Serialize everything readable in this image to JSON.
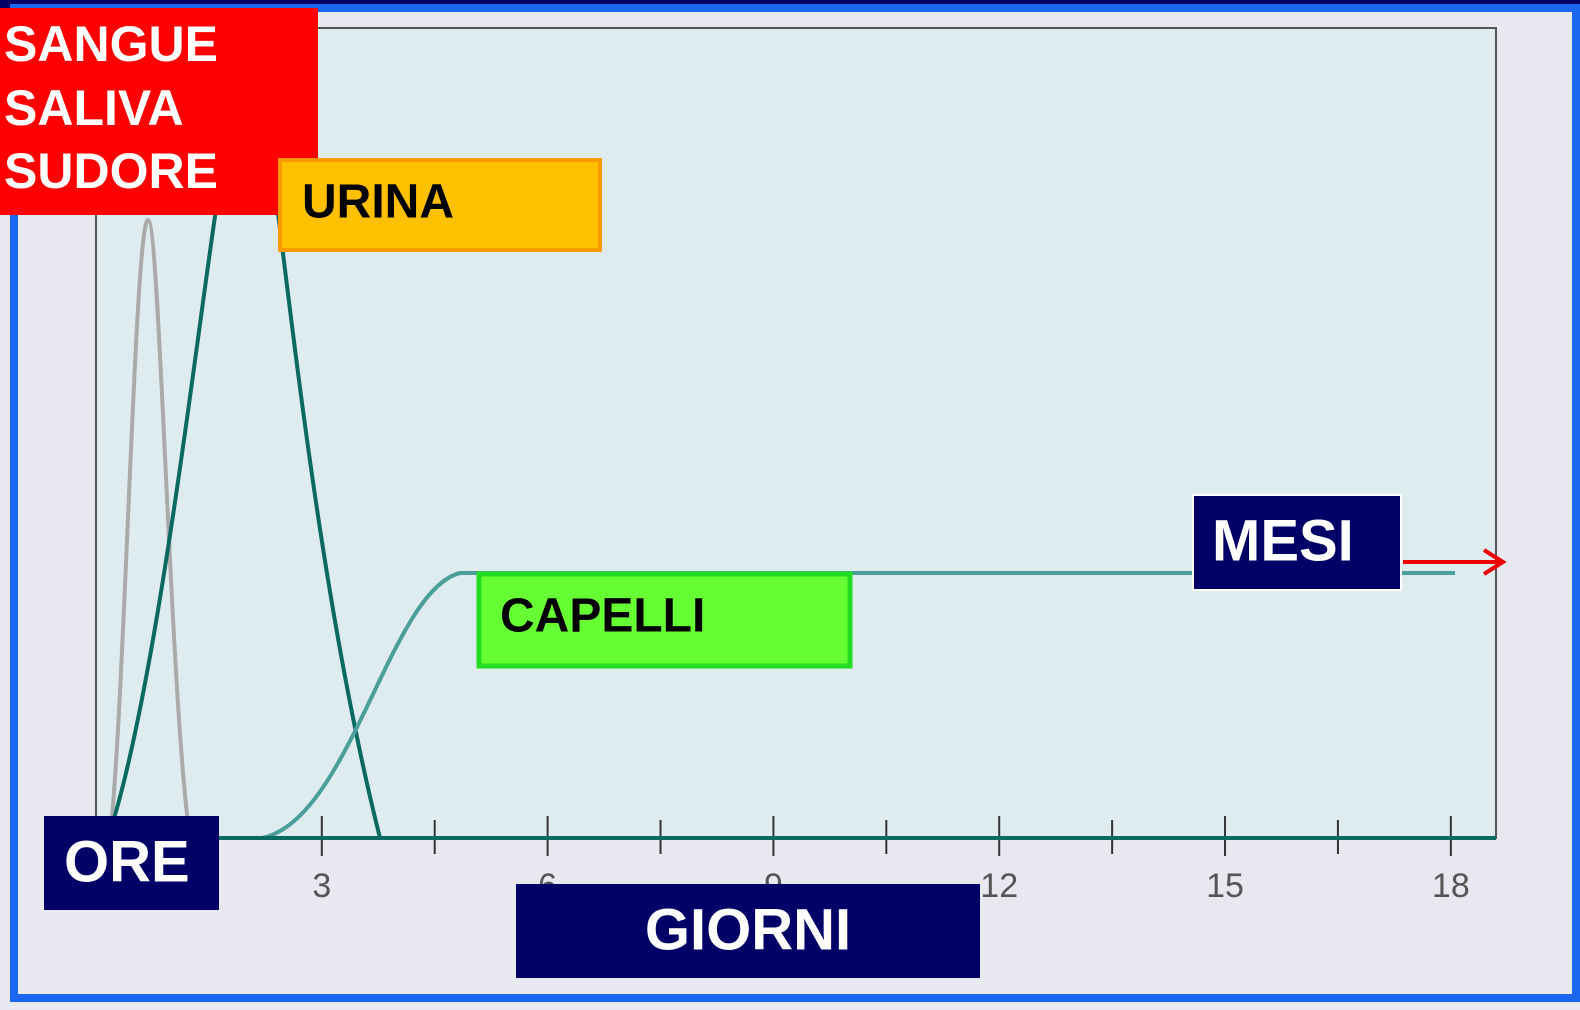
{
  "labels": {
    "blood": [
      "SANGUE",
      "SALIVA",
      "SUDORE"
    ],
    "urine": "URINA",
    "hair": "CAPELLI",
    "months": "MESI",
    "hours": "ORE",
    "days": "GIORNI"
  },
  "axis": {
    "xlim": [
      0,
      18.6
    ],
    "xticks": [
      3,
      6,
      9,
      12,
      15,
      18
    ],
    "minor_xticks": [
      1.5,
      4.5,
      7.5,
      10.5,
      13.5,
      16.5
    ]
  }
}
